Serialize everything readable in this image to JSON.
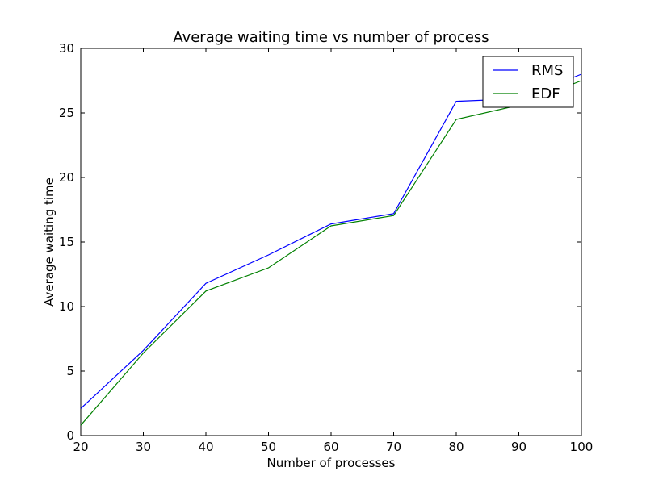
{
  "chart_data": {
    "type": "line",
    "title": "Average waiting time vs  number of process",
    "xlabel": "Number of processes",
    "ylabel": "Average waiting time",
    "xlim": [
      20,
      100
    ],
    "ylim": [
      0,
      30
    ],
    "xticks": [
      "20",
      "30",
      "40",
      "50",
      "60",
      "70",
      "80",
      "90",
      "100"
    ],
    "yticks": [
      "0",
      "5",
      "10",
      "15",
      "20",
      "25",
      "30"
    ],
    "x": [
      20,
      30,
      40,
      50,
      60,
      70,
      80,
      90,
      100
    ],
    "series": [
      {
        "name": "RMS",
        "color": "#0000ff",
        "values": [
          2.1,
          6.6,
          11.8,
          14.0,
          16.4,
          17.2,
          25.9,
          26.1,
          28.0
        ]
      },
      {
        "name": "EDF",
        "color": "#008000",
        "values": [
          0.8,
          6.4,
          11.2,
          13.0,
          16.25,
          17.05,
          24.5,
          25.6,
          27.5
        ]
      }
    ],
    "grid": false,
    "legend_position": "top-right"
  }
}
